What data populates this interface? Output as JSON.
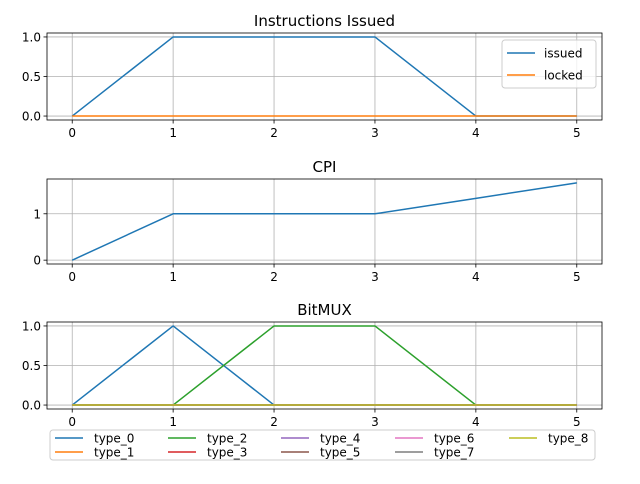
{
  "chart_data": [
    {
      "type": "line",
      "title": "Instructions Issued",
      "x": [
        0,
        1,
        2,
        3,
        4,
        5
      ],
      "xticks": [
        "0",
        "1",
        "2",
        "3",
        "4",
        "5"
      ],
      "yticks": [
        0,
        0.5,
        1.0
      ],
      "ytick_labels": [
        "0.0",
        "0.5",
        "1.0"
      ],
      "xlim": [
        -0.25,
        5.25
      ],
      "ylim": [
        -0.05,
        1.05
      ],
      "grid": true,
      "legend": "top-right",
      "series": [
        {
          "name": "issued",
          "color": "#1f77b4",
          "values": [
            0,
            1,
            1,
            1,
            0,
            0
          ]
        },
        {
          "name": "locked",
          "color": "#ff7f0e",
          "values": [
            0,
            0,
            0,
            0,
            0,
            0
          ]
        }
      ]
    },
    {
      "type": "line",
      "title": "CPI",
      "x": [
        0,
        1,
        2,
        3,
        4,
        5
      ],
      "xticks": [
        "0",
        "1",
        "2",
        "3",
        "4",
        "5"
      ],
      "yticks": [
        0,
        1
      ],
      "ytick_labels": [
        "0",
        "1"
      ],
      "xlim": [
        -0.25,
        5.25
      ],
      "ylim": [
        -0.083,
        1.75
      ],
      "grid": true,
      "legend": "none",
      "series": [
        {
          "color": "#1f77b4",
          "values": [
            0,
            1,
            1,
            1,
            1.333,
            1.667
          ]
        }
      ]
    },
    {
      "type": "line",
      "title": "BitMUX",
      "x": [
        0,
        1,
        2,
        3,
        4,
        5
      ],
      "xticks": [
        "0",
        "1",
        "2",
        "3",
        "4",
        "5"
      ],
      "yticks": [
        0,
        0.5,
        1.0
      ],
      "ytick_labels": [
        "0.0",
        "0.5",
        "1.0"
      ],
      "xlim": [
        -0.25,
        5.25
      ],
      "ylim": [
        -0.05,
        1.05
      ],
      "grid": true,
      "legend": "bottom-outside",
      "series": [
        {
          "name": "type_0",
          "color": "#1f77b4",
          "values": [
            0,
            1,
            0,
            0,
            0,
            0
          ]
        },
        {
          "name": "type_1",
          "color": "#ff7f0e",
          "values": [
            0,
            0,
            0,
            0,
            0,
            0
          ]
        },
        {
          "name": "type_2",
          "color": "#2ca02c",
          "values": [
            0,
            0,
            1,
            1,
            0,
            0
          ]
        },
        {
          "name": "type_3",
          "color": "#d62728",
          "values": [
            0,
            0,
            0,
            0,
            0,
            0
          ]
        },
        {
          "name": "type_4",
          "color": "#9467bd",
          "values": [
            0,
            0,
            0,
            0,
            0,
            0
          ]
        },
        {
          "name": "type_5",
          "color": "#8c564b",
          "values": [
            0,
            0,
            0,
            0,
            0,
            0
          ]
        },
        {
          "name": "type_6",
          "color": "#e377c2",
          "values": [
            0,
            0,
            0,
            0,
            0,
            0
          ]
        },
        {
          "name": "type_7",
          "color": "#7f7f7f",
          "values": [
            0,
            0,
            0,
            0,
            0,
            0
          ]
        },
        {
          "name": "type_8",
          "color": "#bcbd22",
          "values": [
            0,
            0,
            0,
            0,
            0,
            0
          ]
        }
      ]
    }
  ]
}
